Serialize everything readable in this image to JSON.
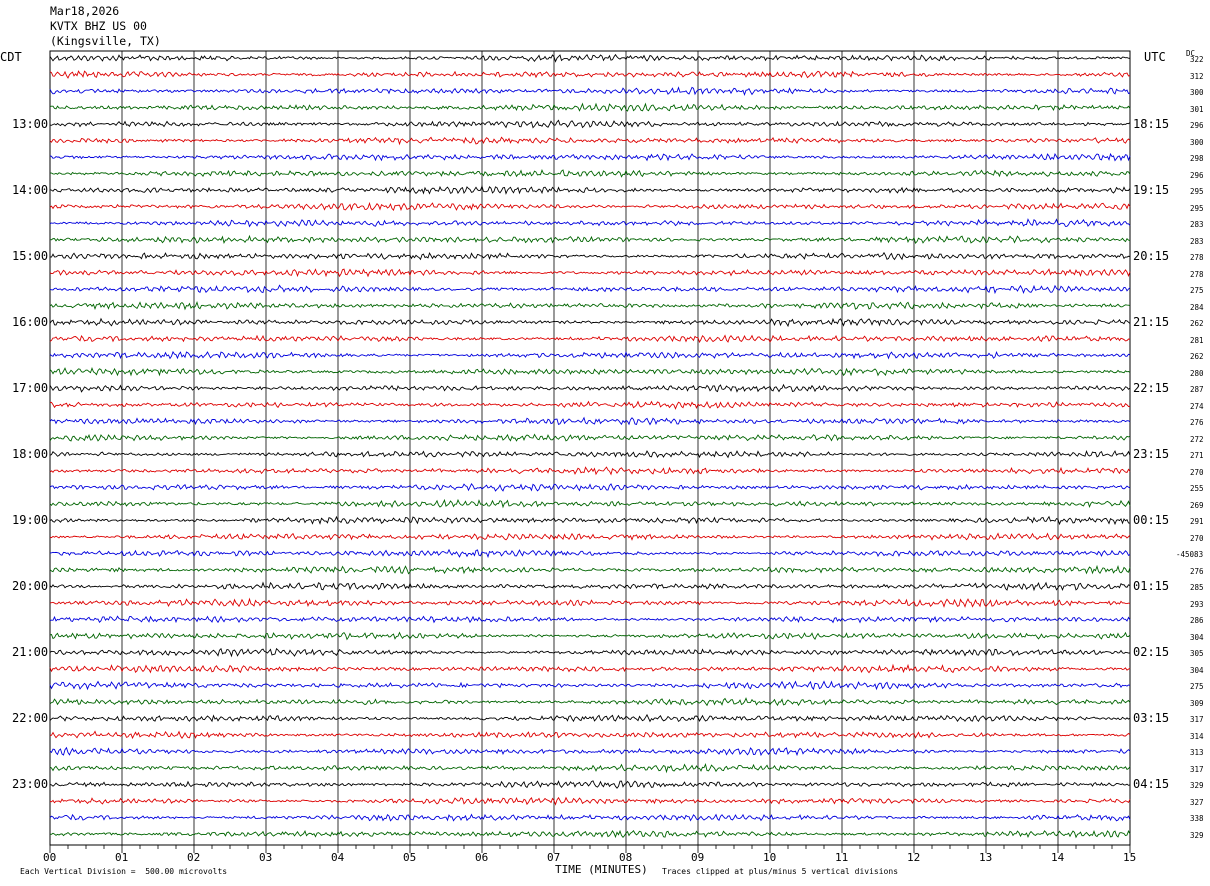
{
  "header": {
    "date": "Mar18,2026",
    "station": "KVTX BHZ US 00",
    "location": "(Kingsville, TX)"
  },
  "left_zone": "CDT",
  "right_zone": "UTC",
  "dc_label": "DC",
  "colors": {
    "series": [
      "#000000",
      "#dd0000",
      "#0000dd",
      "#006400"
    ],
    "grid": "#000000"
  },
  "footer": {
    "xlabel": "TIME (MINUTES)",
    "scale_note": "Each Vertical Division =  500.00 microvolts",
    "clip_note": "Traces clipped at plus/minus 5 vertical divisions"
  },
  "chart_data": {
    "type": "line",
    "xlabel": "TIME (MINUTES)",
    "xlim": [
      0,
      15
    ],
    "x_ticks": [
      "00",
      "01",
      "02",
      "03",
      "04",
      "05",
      "06",
      "07",
      "08",
      "09",
      "10",
      "11",
      "12",
      "13",
      "14",
      "15"
    ],
    "left_hour_labels": [
      "13:00",
      "14:00",
      "15:00",
      "16:00",
      "17:00",
      "18:00",
      "19:00",
      "20:00",
      "21:00",
      "22:00",
      "23:00"
    ],
    "right_hour_labels": [
      "18:15",
      "19:15",
      "20:15",
      "21:15",
      "22:15",
      "23:15",
      "00:15",
      "01:15",
      "02:15",
      "03:15",
      "04:15"
    ],
    "dc_offsets": [
      "322",
      "312",
      "300",
      "301",
      "296",
      "300",
      "298",
      "296",
      "295",
      "295",
      "283",
      "283",
      "278",
      "278",
      "275",
      "284",
      "262",
      "281",
      "262",
      "280",
      "287",
      "274",
      "276",
      "272",
      "271",
      "270",
      "255",
      "269",
      "291",
      "270",
      "-45083",
      "276",
      "285",
      "293",
      "286",
      "304",
      "305",
      "304",
      "275",
      "309",
      "317",
      "314",
      "313",
      "317",
      "329",
      "327",
      "338",
      "329"
    ],
    "trace_count": 48,
    "colors_cycle": [
      "black",
      "red",
      "blue",
      "green"
    ]
  }
}
